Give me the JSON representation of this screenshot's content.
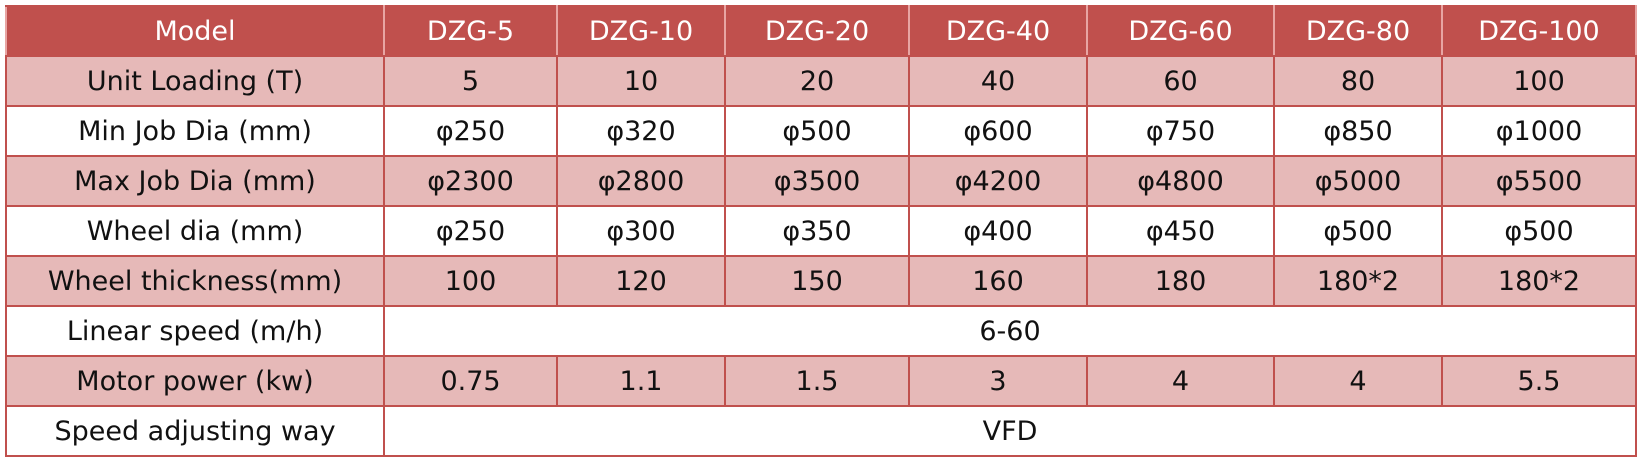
{
  "table": {
    "header": [
      "Model",
      "DZG-5",
      "DZG-10",
      "DZG-20",
      "DZG-40",
      "DZG-60",
      "DZG-80",
      "DZG-100"
    ],
    "rows": [
      [
        "Unit Loading (T)",
        "5",
        "10",
        "20",
        "40",
        "60",
        "80",
        "100"
      ],
      [
        "Min Job Dia (mm)",
        "φ250",
        "φ320",
        "φ500",
        "φ600",
        "φ750",
        "φ850",
        "φ1000"
      ],
      [
        "Max Job Dia (mm)",
        "φ2300",
        "φ2800",
        "φ3500",
        "φ4200",
        "φ4800",
        "φ5000",
        "φ5500"
      ],
      [
        "Wheel dia (mm)",
        "φ250",
        "φ300",
        "φ350",
        "φ400",
        "φ450",
        "φ500",
        "φ500"
      ],
      [
        "Wheel thickness(mm)",
        "100",
        "120",
        "150",
        "160",
        "180",
        "180*2",
        "180*2"
      ],
      [
        "Linear speed (m/h)",
        "6-60"
      ],
      [
        "Motor power (kw)",
        "0.75",
        "1.1",
        "1.5",
        "3",
        "4",
        "4",
        "5.5"
      ],
      [
        "Speed adjusting way",
        "VFD"
      ]
    ]
  }
}
